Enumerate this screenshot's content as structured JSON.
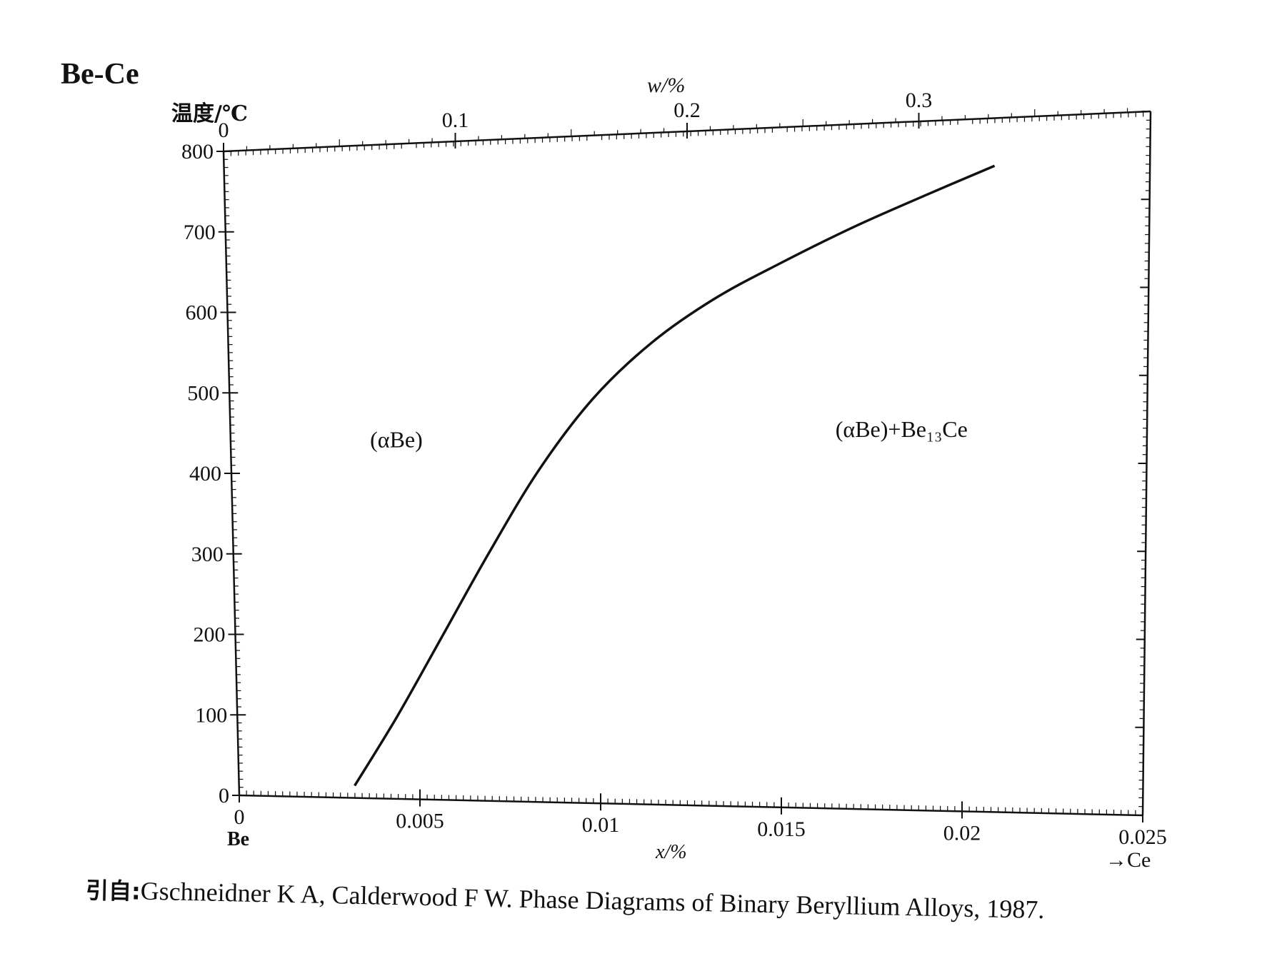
{
  "title": "Be-Ce",
  "citation": {
    "prefix": "引自:",
    "text": "Gschneidner K A, Calderwood F W. Phase Diagrams of Binary Beryllium Alloys, 1987."
  },
  "chart_data": {
    "type": "line",
    "title": "Be-Ce",
    "ylabel": "温度/℃",
    "xlabel": "x/%",
    "x2label": "w/%",
    "left_end_label": "Be",
    "right_end_label": "→Ce",
    "xlim": [
      0,
      0.025
    ],
    "ylim": [
      0,
      800
    ],
    "x2lim": [
      0,
      0.4
    ],
    "x_ticks": [
      0,
      0.005,
      0.01,
      0.015,
      0.02,
      0.025
    ],
    "x_tick_labels": [
      "0",
      "0.005",
      "0.01",
      "0.015",
      "0.02",
      "0.025"
    ],
    "y_ticks": [
      0,
      100,
      200,
      300,
      400,
      500,
      600,
      700,
      800
    ],
    "y_tick_labels": [
      "0",
      "100",
      "200",
      "300",
      "400",
      "500",
      "600",
      "700",
      "800"
    ],
    "x2_ticks": [
      0,
      0.1,
      0.2,
      0.3
    ],
    "x2_tick_labels": [
      "0",
      "0.1",
      "0.2",
      "0.3"
    ],
    "grid": false,
    "series": [
      {
        "name": "",
        "color": "#111111",
        "x": [
          0.0032,
          0.0044,
          0.0057,
          0.007,
          0.0084,
          0.0099,
          0.0115,
          0.0132,
          0.015,
          0.017,
          0.019,
          0.0208
        ],
        "y": [
          15,
          100,
          200,
          300,
          400,
          485,
          550,
          600,
          640,
          680,
          715,
          745
        ]
      }
    ],
    "annotations": [
      {
        "text": "(αBe)",
        "x": 0.0038,
        "y": 430
      },
      {
        "text": "(αBe)+Be₁₃Ce",
        "x": 0.0165,
        "y": 435
      }
    ]
  }
}
